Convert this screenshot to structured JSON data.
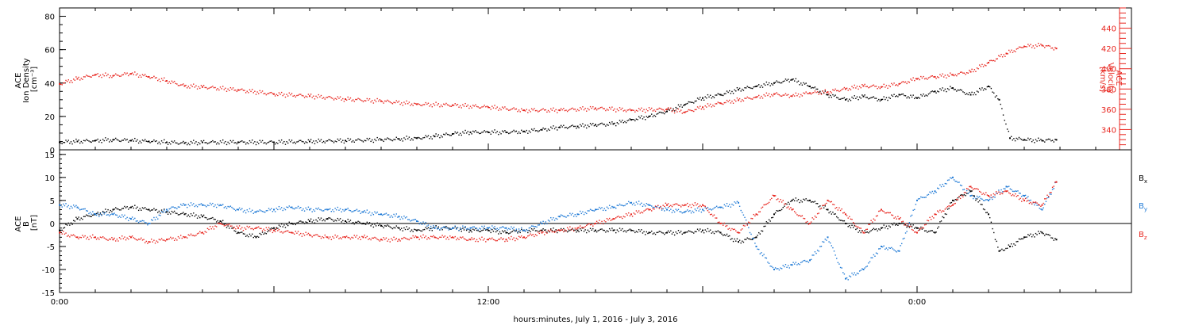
{
  "figure": {
    "xlabel": "hours:minutes, July  1, 2016 - July  3, 2016",
    "x_ticks": [
      {
        "hours": 0,
        "label": "0:00"
      },
      {
        "hours": 12,
        "label": "12:00"
      },
      {
        "hours": 24,
        "label": "0:00"
      }
    ],
    "colors": {
      "black": "#000000",
      "red": "#e8261f",
      "blue": "#1f7ad6"
    }
  },
  "chart_data": [
    {
      "type": "scatter",
      "panel": "top",
      "ylabel_lines": [
        "ACE",
        "Ion Density",
        "[cm⁻³]"
      ],
      "y2label_lines": [
        "ACE",
        "Velocity",
        "[km/s]"
      ],
      "xlim_hours": [
        0,
        30
      ],
      "ylim": [
        0,
        85
      ],
      "y2lim": [
        320,
        460
      ],
      "yticks": [
        0,
        20,
        40,
        60,
        80
      ],
      "y2ticks": [
        340,
        360,
        380,
        400,
        420,
        440
      ],
      "series": [
        {
          "axis": "left",
          "color": "#000000",
          "points": [
            [
              0,
              4.5
            ],
            [
              0.5,
              5
            ],
            [
              1,
              5.5
            ],
            [
              1.5,
              6
            ],
            [
              2,
              5.5
            ],
            [
              2.5,
              5
            ],
            [
              3,
              4.5
            ],
            [
              3.5,
              4
            ],
            [
              4,
              4.5
            ],
            [
              5,
              4.5
            ],
            [
              6,
              4.5
            ],
            [
              7,
              5
            ],
            [
              8,
              5.5
            ],
            [
              9,
              6
            ],
            [
              9.5,
              6.5
            ],
            [
              10,
              7
            ],
            [
              10.5,
              8
            ],
            [
              11,
              9.5
            ],
            [
              11.5,
              10.5
            ],
            [
              12,
              10.5
            ],
            [
              12.5,
              10.5
            ],
            [
              13,
              11
            ],
            [
              13.5,
              12
            ],
            [
              14,
              13.5
            ],
            [
              14.5,
              14
            ],
            [
              15,
              15
            ],
            [
              15.5,
              15.5
            ],
            [
              16,
              18
            ],
            [
              16.5,
              20
            ],
            [
              17,
              23
            ],
            [
              17.5,
              27
            ],
            [
              18,
              31
            ],
            [
              18.5,
              33
            ],
            [
              19,
              36
            ],
            [
              19.5,
              38
            ],
            [
              20,
              40
            ],
            [
              20.5,
              42
            ],
            [
              21,
              38
            ],
            [
              21.5,
              33
            ],
            [
              22,
              30
            ],
            [
              22.5,
              32
            ],
            [
              23,
              30
            ],
            [
              23.5,
              33
            ],
            [
              24,
              31
            ],
            [
              24.5,
              35
            ],
            [
              25,
              37
            ],
            [
              25.5,
              33
            ],
            [
              26,
              38
            ],
            [
              26.3,
              30
            ],
            [
              26.6,
              7
            ],
            [
              27,
              6
            ],
            [
              27.5,
              5.5
            ],
            [
              27.9,
              6
            ]
          ]
        },
        {
          "axis": "right",
          "color": "#e8261f",
          "points": [
            [
              0,
              385
            ],
            [
              0.5,
              390
            ],
            [
              1,
              394
            ],
            [
              1.5,
              393
            ],
            [
              2,
              395
            ],
            [
              2.5,
              392
            ],
            [
              3,
              388
            ],
            [
              3.5,
              383
            ],
            [
              4,
              382
            ],
            [
              5,
              379
            ],
            [
              6,
              375
            ],
            [
              7,
              373
            ],
            [
              8,
              370
            ],
            [
              9,
              368
            ],
            [
              10,
              365
            ],
            [
              11,
              364
            ],
            [
              12,
              362
            ],
            [
              13,
              359
            ],
            [
              14,
              359
            ],
            [
              15,
              361
            ],
            [
              16,
              359
            ],
            [
              17,
              360
            ],
            [
              17.5,
              357
            ],
            [
              18,
              362
            ],
            [
              18.5,
              366
            ],
            [
              19,
              369
            ],
            [
              19.5,
              372
            ],
            [
              20,
              375
            ],
            [
              20.5,
              373
            ],
            [
              21,
              376
            ],
            [
              21.5,
              377
            ],
            [
              22,
              380
            ],
            [
              22.5,
              383
            ],
            [
              23,
              382
            ],
            [
              23.5,
              385
            ],
            [
              24,
              390
            ],
            [
              24.5,
              392
            ],
            [
              25,
              394
            ],
            [
              25.5,
              397
            ],
            [
              26,
              406
            ],
            [
              26.5,
              415
            ],
            [
              27,
              422
            ],
            [
              27.5,
              423
            ],
            [
              27.9,
              420
            ]
          ]
        }
      ]
    },
    {
      "type": "scatter",
      "panel": "bottom",
      "ylabel_lines": [
        "ACE",
        "B",
        "[nT]"
      ],
      "xlim_hours": [
        0,
        30
      ],
      "ylim": [
        -15,
        16
      ],
      "yticks": [
        -15,
        -10,
        -5,
        0,
        5,
        10,
        15
      ],
      "zero_line": true,
      "legend": [
        "Bx",
        "By",
        "Bz"
      ],
      "series": [
        {
          "name": "Bx",
          "color": "#000000",
          "points": [
            [
              0,
              -1.5
            ],
            [
              0.5,
              1
            ],
            [
              1,
              2
            ],
            [
              1.5,
              3
            ],
            [
              2,
              3.5
            ],
            [
              2.5,
              3
            ],
            [
              3,
              2.5
            ],
            [
              3.5,
              2
            ],
            [
              4,
              1.5
            ],
            [
              4.5,
              0.5
            ],
            [
              5,
              -2
            ],
            [
              5.5,
              -3
            ],
            [
              6,
              -1
            ],
            [
              6.5,
              0
            ],
            [
              7,
              0.5
            ],
            [
              7.5,
              1
            ],
            [
              8,
              0.5
            ],
            [
              8.5,
              0
            ],
            [
              9,
              -0.5
            ],
            [
              9.5,
              -1
            ],
            [
              10,
              -1.5
            ],
            [
              10.5,
              -1
            ],
            [
              11,
              -1
            ],
            [
              11.5,
              -1.5
            ],
            [
              12,
              -1.5
            ],
            [
              12.5,
              -2
            ],
            [
              13,
              -1.5
            ],
            [
              13.5,
              -1.5
            ],
            [
              14,
              -1.5
            ],
            [
              14.5,
              -1.5
            ],
            [
              15,
              -1.5
            ],
            [
              15.5,
              -1.5
            ],
            [
              16,
              -1.5
            ],
            [
              16.5,
              -2
            ],
            [
              17,
              -2
            ],
            [
              17.5,
              -2
            ],
            [
              18,
              -1.5
            ],
            [
              18.5,
              -2
            ],
            [
              19,
              -4
            ],
            [
              19.5,
              -3
            ],
            [
              20,
              2
            ],
            [
              20.5,
              5
            ],
            [
              21,
              5
            ],
            [
              21.5,
              3
            ],
            [
              22,
              0
            ],
            [
              22.5,
              -2
            ],
            [
              23,
              -1
            ],
            [
              23.5,
              0
            ],
            [
              24,
              -1
            ],
            [
              24.5,
              -2
            ],
            [
              25,
              5
            ],
            [
              25.5,
              7
            ],
            [
              26,
              2
            ],
            [
              26.3,
              -6
            ],
            [
              26.6,
              -5
            ],
            [
              27,
              -3
            ],
            [
              27.5,
              -2
            ],
            [
              27.9,
              -3.5
            ]
          ]
        },
        {
          "name": "By",
          "color": "#1f7ad6",
          "points": [
            [
              0,
              4
            ],
            [
              0.5,
              3.5
            ],
            [
              1,
              2
            ],
            [
              1.5,
              2
            ],
            [
              2,
              1
            ],
            [
              2.5,
              0
            ],
            [
              3,
              3
            ],
            [
              3.5,
              4
            ],
            [
              4,
              4
            ],
            [
              4.5,
              4
            ],
            [
              5,
              3
            ],
            [
              5.5,
              2.5
            ],
            [
              6,
              3
            ],
            [
              6.5,
              3.5
            ],
            [
              7,
              3
            ],
            [
              7.5,
              3
            ],
            [
              8,
              3
            ],
            [
              8.5,
              2.5
            ],
            [
              9,
              2
            ],
            [
              9.5,
              1.5
            ],
            [
              10,
              0.5
            ],
            [
              10.5,
              -1
            ],
            [
              11,
              -1
            ],
            [
              11.5,
              -1
            ],
            [
              12,
              -1
            ],
            [
              12.5,
              -1
            ],
            [
              13,
              -1.5
            ],
            [
              13.5,
              0
            ],
            [
              14,
              1.5
            ],
            [
              14.5,
              2
            ],
            [
              15,
              3
            ],
            [
              15.5,
              3.5
            ],
            [
              16,
              4.5
            ],
            [
              16.5,
              4
            ],
            [
              17,
              3
            ],
            [
              17.5,
              2.5
            ],
            [
              18,
              3
            ],
            [
              18.5,
              3.5
            ],
            [
              19,
              4.5
            ],
            [
              19.5,
              -5
            ],
            [
              20,
              -10
            ],
            [
              20.5,
              -9
            ],
            [
              21,
              -8
            ],
            [
              21.5,
              -3
            ],
            [
              22,
              -12
            ],
            [
              22.5,
              -10
            ],
            [
              23,
              -5
            ],
            [
              23.5,
              -6
            ],
            [
              24,
              5
            ],
            [
              24.5,
              7
            ],
            [
              25,
              10
            ],
            [
              25.5,
              6
            ],
            [
              26,
              5
            ],
            [
              26.5,
              8
            ],
            [
              27,
              6
            ],
            [
              27.5,
              3
            ],
            [
              27.9,
              9
            ]
          ]
        },
        {
          "name": "Bz",
          "color": "#e8261f",
          "points": [
            [
              0,
              -2
            ],
            [
              0.5,
              -3
            ],
            [
              1,
              -3
            ],
            [
              1.5,
              -3.5
            ],
            [
              2,
              -3
            ],
            [
              2.5,
              -4
            ],
            [
              3,
              -3.5
            ],
            [
              3.5,
              -3
            ],
            [
              4,
              -2
            ],
            [
              4.5,
              0
            ],
            [
              5,
              -1
            ],
            [
              5.5,
              -1
            ],
            [
              6,
              -1.5
            ],
            [
              6.5,
              -2
            ],
            [
              7,
              -2.5
            ],
            [
              7.5,
              -3
            ],
            [
              8,
              -3
            ],
            [
              8.5,
              -3
            ],
            [
              9,
              -3.5
            ],
            [
              9.5,
              -3.5
            ],
            [
              10,
              -3
            ],
            [
              10.5,
              -3
            ],
            [
              11,
              -3
            ],
            [
              11.5,
              -3.5
            ],
            [
              12,
              -3.5
            ],
            [
              12.5,
              -3.5
            ],
            [
              13,
              -3
            ],
            [
              13.5,
              -2
            ],
            [
              14,
              -1.5
            ],
            [
              14.5,
              -1
            ],
            [
              15,
              0
            ],
            [
              15.5,
              1
            ],
            [
              16,
              2
            ],
            [
              16.5,
              3
            ],
            [
              17,
              4
            ],
            [
              17.5,
              4
            ],
            [
              18,
              4
            ],
            [
              18.5,
              0
            ],
            [
              19,
              -2
            ],
            [
              19.5,
              2
            ],
            [
              20,
              6
            ],
            [
              20.5,
              3
            ],
            [
              21,
              0
            ],
            [
              21.5,
              5
            ],
            [
              22,
              2
            ],
            [
              22.5,
              -2
            ],
            [
              23,
              3
            ],
            [
              23.5,
              1
            ],
            [
              24,
              -2
            ],
            [
              24.5,
              2
            ],
            [
              25,
              4
            ],
            [
              25.5,
              8
            ],
            [
              26,
              6
            ],
            [
              26.5,
              7
            ],
            [
              27,
              5
            ],
            [
              27.5,
              4
            ],
            [
              27.9,
              9
            ]
          ]
        }
      ]
    }
  ]
}
